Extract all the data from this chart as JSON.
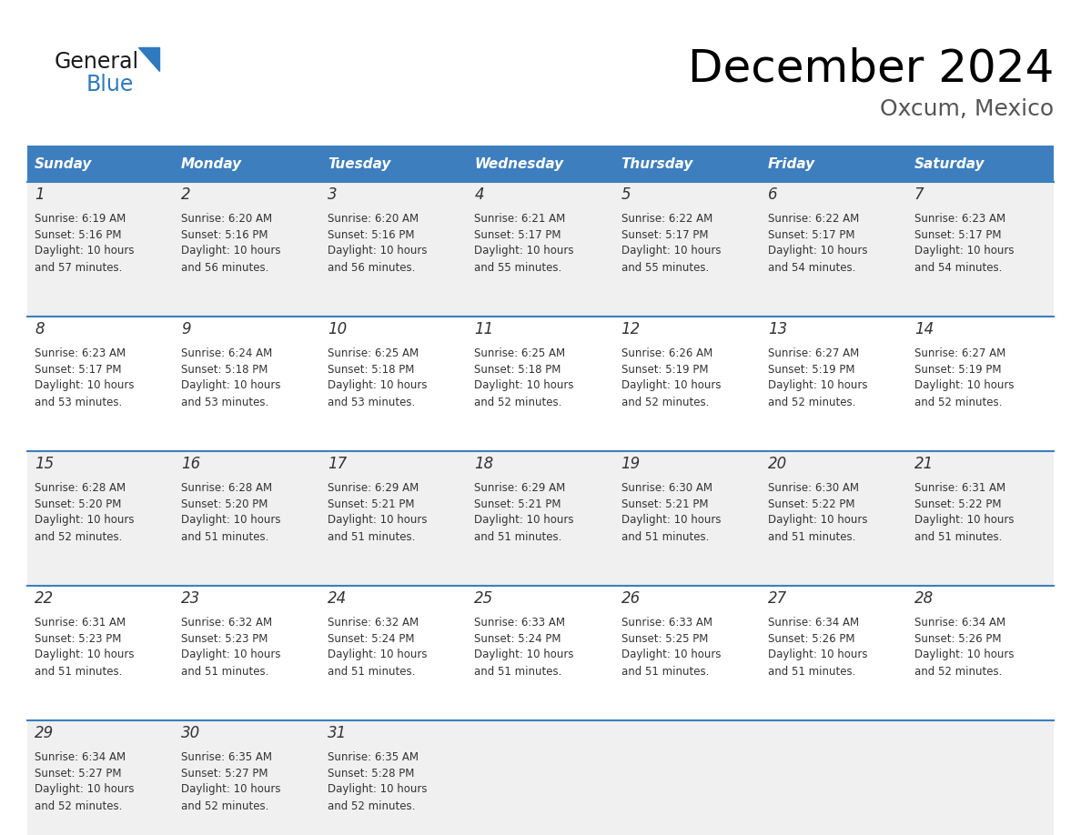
{
  "title": "December 2024",
  "subtitle": "Oxcum, Mexico",
  "days_of_week": [
    "Sunday",
    "Monday",
    "Tuesday",
    "Wednesday",
    "Thursday",
    "Friday",
    "Saturday"
  ],
  "header_bg": "#3d7ebf",
  "header_text_color": "#ffffff",
  "row_bg_odd": "#f0f0f0",
  "row_bg_even": "#ffffff",
  "cell_text_color": "#333333",
  "separator_color": "#3d7ebf",
  "fig_width": 11.88,
  "fig_height": 9.18,
  "dpi": 100,
  "weeks": [
    [
      {
        "day": 1,
        "sunrise": "6:19 AM",
        "sunset": "5:16 PM",
        "daylight": "10 hours and 57 minutes."
      },
      {
        "day": 2,
        "sunrise": "6:20 AM",
        "sunset": "5:16 PM",
        "daylight": "10 hours and 56 minutes."
      },
      {
        "day": 3,
        "sunrise": "6:20 AM",
        "sunset": "5:16 PM",
        "daylight": "10 hours and 56 minutes."
      },
      {
        "day": 4,
        "sunrise": "6:21 AM",
        "sunset": "5:17 PM",
        "daylight": "10 hours and 55 minutes."
      },
      {
        "day": 5,
        "sunrise": "6:22 AM",
        "sunset": "5:17 PM",
        "daylight": "10 hours and 55 minutes."
      },
      {
        "day": 6,
        "sunrise": "6:22 AM",
        "sunset": "5:17 PM",
        "daylight": "10 hours and 54 minutes."
      },
      {
        "day": 7,
        "sunrise": "6:23 AM",
        "sunset": "5:17 PM",
        "daylight": "10 hours and 54 minutes."
      }
    ],
    [
      {
        "day": 8,
        "sunrise": "6:23 AM",
        "sunset": "5:17 PM",
        "daylight": "10 hours and 53 minutes."
      },
      {
        "day": 9,
        "sunrise": "6:24 AM",
        "sunset": "5:18 PM",
        "daylight": "10 hours and 53 minutes."
      },
      {
        "day": 10,
        "sunrise": "6:25 AM",
        "sunset": "5:18 PM",
        "daylight": "10 hours and 53 minutes."
      },
      {
        "day": 11,
        "sunrise": "6:25 AM",
        "sunset": "5:18 PM",
        "daylight": "10 hours and 52 minutes."
      },
      {
        "day": 12,
        "sunrise": "6:26 AM",
        "sunset": "5:19 PM",
        "daylight": "10 hours and 52 minutes."
      },
      {
        "day": 13,
        "sunrise": "6:27 AM",
        "sunset": "5:19 PM",
        "daylight": "10 hours and 52 minutes."
      },
      {
        "day": 14,
        "sunrise": "6:27 AM",
        "sunset": "5:19 PM",
        "daylight": "10 hours and 52 minutes."
      }
    ],
    [
      {
        "day": 15,
        "sunrise": "6:28 AM",
        "sunset": "5:20 PM",
        "daylight": "10 hours and 52 minutes."
      },
      {
        "day": 16,
        "sunrise": "6:28 AM",
        "sunset": "5:20 PM",
        "daylight": "10 hours and 51 minutes."
      },
      {
        "day": 17,
        "sunrise": "6:29 AM",
        "sunset": "5:21 PM",
        "daylight": "10 hours and 51 minutes."
      },
      {
        "day": 18,
        "sunrise": "6:29 AM",
        "sunset": "5:21 PM",
        "daylight": "10 hours and 51 minutes."
      },
      {
        "day": 19,
        "sunrise": "6:30 AM",
        "sunset": "5:21 PM",
        "daylight": "10 hours and 51 minutes."
      },
      {
        "day": 20,
        "sunrise": "6:30 AM",
        "sunset": "5:22 PM",
        "daylight": "10 hours and 51 minutes."
      },
      {
        "day": 21,
        "sunrise": "6:31 AM",
        "sunset": "5:22 PM",
        "daylight": "10 hours and 51 minutes."
      }
    ],
    [
      {
        "day": 22,
        "sunrise": "6:31 AM",
        "sunset": "5:23 PM",
        "daylight": "10 hours and 51 minutes."
      },
      {
        "day": 23,
        "sunrise": "6:32 AM",
        "sunset": "5:23 PM",
        "daylight": "10 hours and 51 minutes."
      },
      {
        "day": 24,
        "sunrise": "6:32 AM",
        "sunset": "5:24 PM",
        "daylight": "10 hours and 51 minutes."
      },
      {
        "day": 25,
        "sunrise": "6:33 AM",
        "sunset": "5:24 PM",
        "daylight": "10 hours and 51 minutes."
      },
      {
        "day": 26,
        "sunrise": "6:33 AM",
        "sunset": "5:25 PM",
        "daylight": "10 hours and 51 minutes."
      },
      {
        "day": 27,
        "sunrise": "6:34 AM",
        "sunset": "5:26 PM",
        "daylight": "10 hours and 51 minutes."
      },
      {
        "day": 28,
        "sunrise": "6:34 AM",
        "sunset": "5:26 PM",
        "daylight": "10 hours and 52 minutes."
      }
    ],
    [
      {
        "day": 29,
        "sunrise": "6:34 AM",
        "sunset": "5:27 PM",
        "daylight": "10 hours and 52 minutes."
      },
      {
        "day": 30,
        "sunrise": "6:35 AM",
        "sunset": "5:27 PM",
        "daylight": "10 hours and 52 minutes."
      },
      {
        "day": 31,
        "sunrise": "6:35 AM",
        "sunset": "5:28 PM",
        "daylight": "10 hours and 52 minutes."
      },
      null,
      null,
      null,
      null
    ]
  ]
}
